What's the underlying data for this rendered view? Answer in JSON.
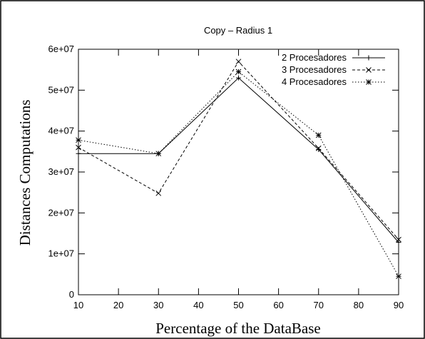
{
  "chart_data": {
    "type": "line",
    "title": "Copy – Radius 1",
    "xlabel": "Percentage of the DataBase",
    "ylabel": "Distances Computations",
    "xlim": [
      10,
      90
    ],
    "ylim": [
      0,
      60000000
    ],
    "xticks": [
      10,
      20,
      30,
      40,
      50,
      60,
      70,
      80,
      90
    ],
    "yticks": [
      0,
      10000000,
      20000000,
      30000000,
      40000000,
      50000000,
      60000000
    ],
    "xtick_labels": [
      "10",
      "20",
      "30",
      "40",
      "50",
      "60",
      "70",
      "80",
      "90"
    ],
    "ytick_labels": [
      "0",
      "1e+07",
      "2e+07",
      "3e+07",
      "4e+07",
      "5e+07",
      "6e+07"
    ],
    "grid": false,
    "legend_position": "top-right",
    "series": [
      {
        "name": "2 Procesadores",
        "marker": "plus",
        "dash": "solid",
        "x": [
          10,
          30,
          50,
          70,
          90
        ],
        "y": [
          34500000,
          34500000,
          53000000,
          35500000,
          12800000
        ]
      },
      {
        "name": "3 Procesadores",
        "marker": "cross",
        "dash": "dashed",
        "x": [
          10,
          30,
          50,
          70,
          90
        ],
        "y": [
          36000000,
          24800000,
          57000000,
          35800000,
          13500000
        ]
      },
      {
        "name": "4 Procesadores",
        "marker": "star",
        "dash": "dotted",
        "x": [
          10,
          30,
          50,
          70,
          90
        ],
        "y": [
          37800000,
          34500000,
          54500000,
          39000000,
          4500000
        ]
      }
    ]
  }
}
